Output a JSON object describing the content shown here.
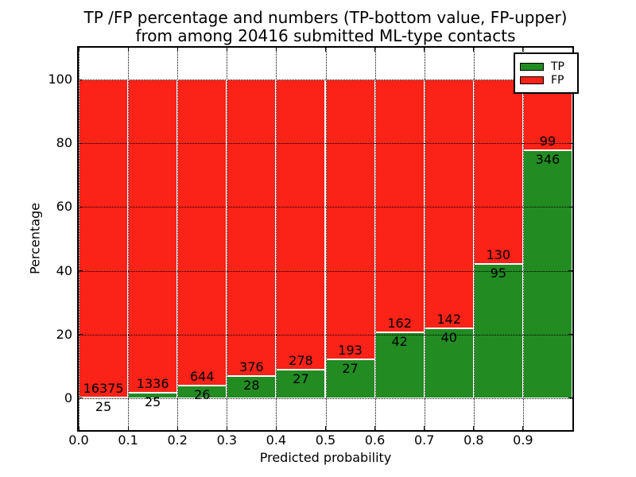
{
  "title": {
    "line1": "TP /FP percentage and numbers (TP-bottom value, FP-upper)",
    "line2": "from among 20416 submitted ML-type contacts"
  },
  "chart_data": {
    "type": "bar",
    "stacked": true,
    "title": "TP /FP percentage and numbers (TP-bottom value, FP-upper) from among 20416 submitted ML-type contacts",
    "xlabel": "Predicted probability",
    "ylabel": "Percentage",
    "total_contacts": 20416,
    "x_ticks": [
      "0.0",
      "0.1",
      "0.2",
      "0.3",
      "0.4",
      "0.5",
      "0.6",
      "0.7",
      "0.8",
      "0.9"
    ],
    "y_ticks": [
      0,
      20,
      40,
      60,
      80,
      100
    ],
    "xlim": [
      0.0,
      1.0
    ],
    "ylim": [
      -10,
      110
    ],
    "grid": true,
    "grid_style": "dotted",
    "bar_note": "each bar spans 0.1 of predicted probability; green TP% bottom, red FP% top, stacked to 100%; labels show raw counts (TP below boundary, FP above)",
    "bins": [
      {
        "range": [
          0.0,
          0.1
        ],
        "tp": 25,
        "fp": 16375
      },
      {
        "range": [
          0.1,
          0.2
        ],
        "tp": 25,
        "fp": 1336
      },
      {
        "range": [
          0.2,
          0.3
        ],
        "tp": 26,
        "fp": 644
      },
      {
        "range": [
          0.3,
          0.4
        ],
        "tp": 28,
        "fp": 376
      },
      {
        "range": [
          0.4,
          0.5
        ],
        "tp": 27,
        "fp": 278
      },
      {
        "range": [
          0.5,
          0.6
        ],
        "tp": 27,
        "fp": 193
      },
      {
        "range": [
          0.6,
          0.7
        ],
        "tp": 42,
        "fp": 162
      },
      {
        "range": [
          0.7,
          0.8
        ],
        "tp": 40,
        "fp": 142
      },
      {
        "range": [
          0.8,
          0.9
        ],
        "tp": 95,
        "fp": 130
      },
      {
        "range": [
          0.9,
          1.0
        ],
        "tp": 346,
        "fp": 99
      }
    ],
    "legend": {
      "position": "upper right",
      "entries": [
        {
          "label": "TP",
          "color": "#228b22"
        },
        {
          "label": "FP",
          "color": "#fb2217"
        }
      ]
    }
  }
}
